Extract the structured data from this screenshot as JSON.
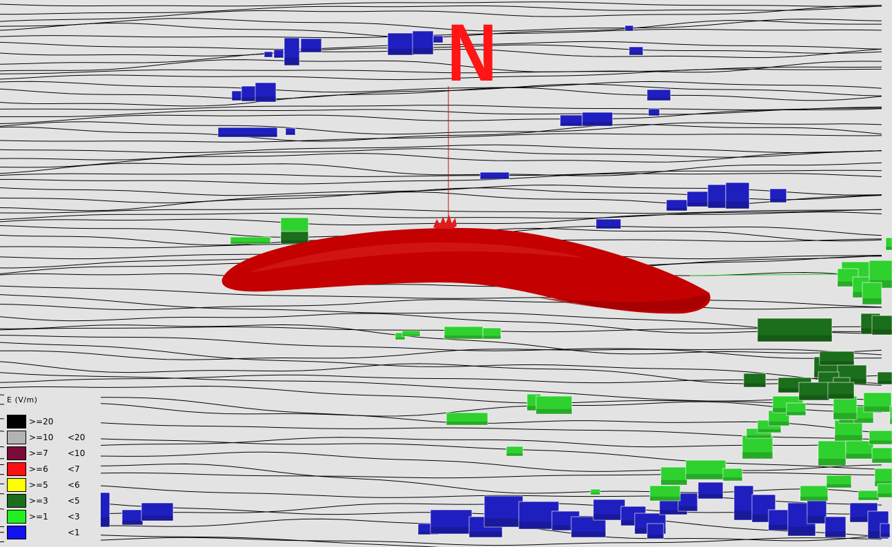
{
  "scene": {
    "north_label": "N",
    "colors": {
      "background": "#e3e3e3",
      "contour": "#000000",
      "field_pattern": "#c40000",
      "field_pattern_highlight": "#e11b1b",
      "building_low": "#1f1fbf",
      "building_mid": "#2fd12f",
      "building_high": "#1b6e1b",
      "north_marker": "#ff1515"
    },
    "buildings": [
      {
        "bucket": "<1",
        "color_key": "building_low"
      },
      {
        "bucket": ">=1 <3",
        "color_key": "building_mid"
      },
      {
        "bucket": ">=3 <5",
        "color_key": "building_high"
      }
    ]
  },
  "legend": {
    "title": "E (V/m)",
    "rows": [
      {
        "ge": ">=20",
        "lt": "",
        "color": "#000000"
      },
      {
        "ge": ">=10",
        "lt": "<20",
        "color": "#b3b3b3"
      },
      {
        "ge": ">=7",
        "lt": "<10",
        "color": "#7a0a3a"
      },
      {
        "ge": ">=6",
        "lt": "<7",
        "color": "#ff1010"
      },
      {
        "ge": ">=5",
        "lt": "<6",
        "color": "#ffff00"
      },
      {
        "ge": ">=3",
        "lt": "<5",
        "color": "#1b6e1b"
      },
      {
        "ge": ">=1",
        "lt": "<3",
        "color": "#22ee22"
      },
      {
        "ge": "",
        "lt": "<1",
        "color": "#1010f0"
      }
    ]
  }
}
